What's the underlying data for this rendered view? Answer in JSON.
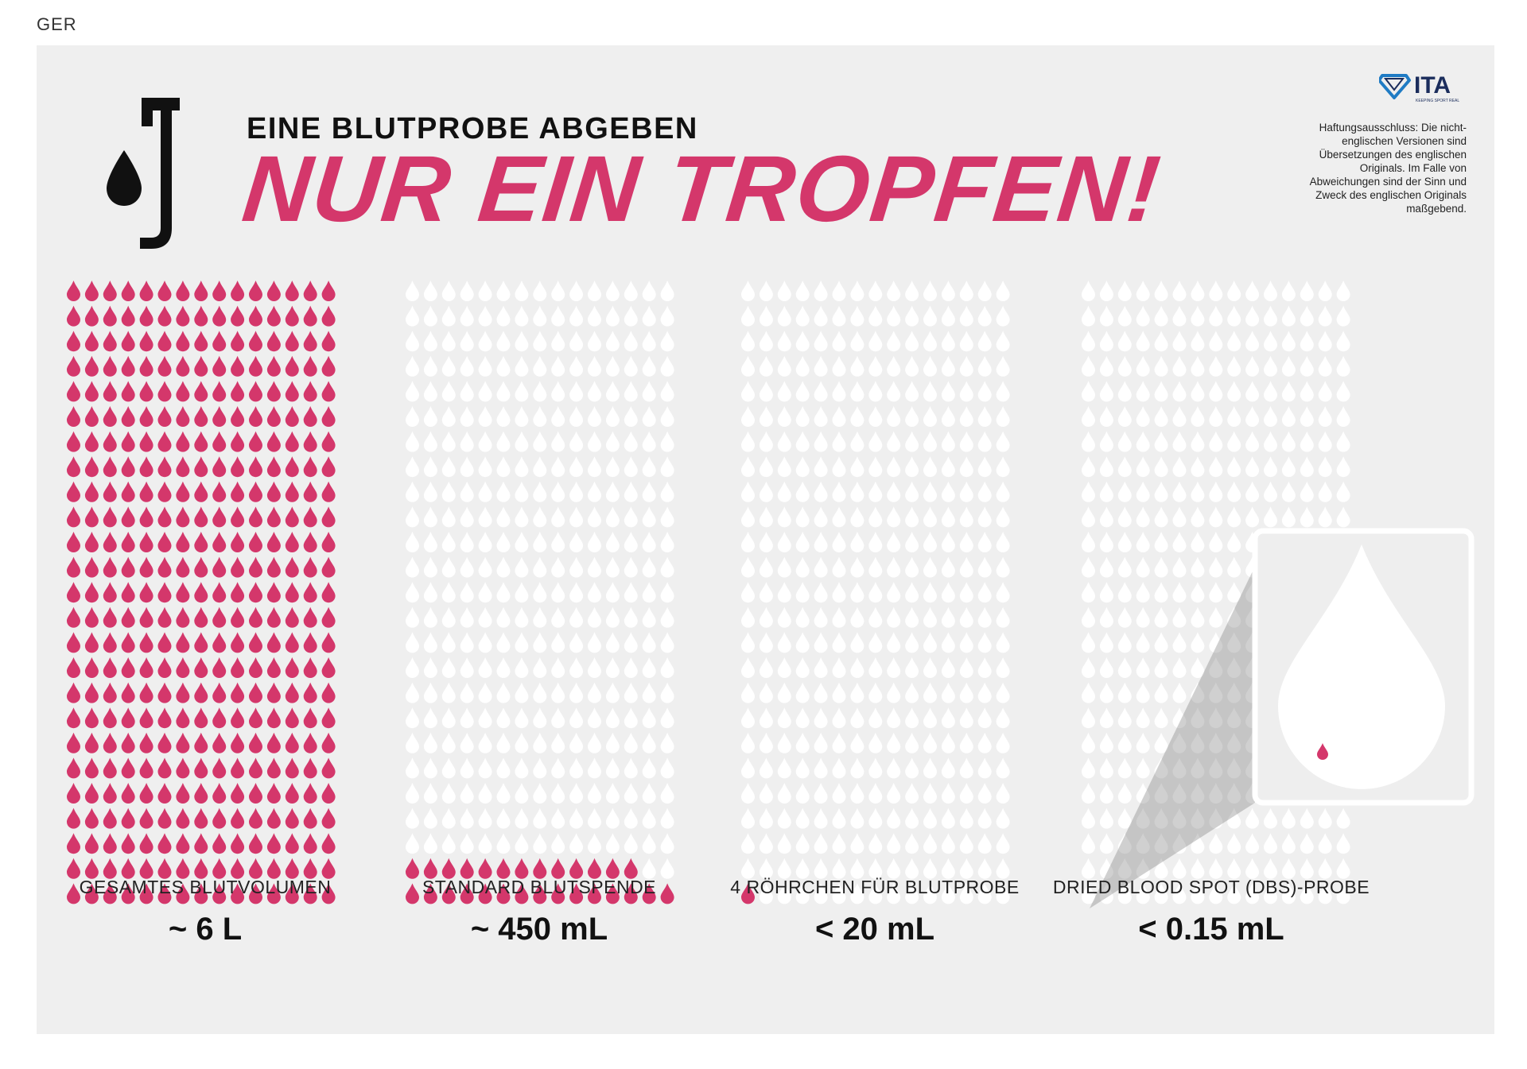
{
  "language_code": "GER",
  "header": {
    "subtitle": "EINE BLUTPROBE ABGEBEN",
    "title": "NUR EIN TROPFEN!"
  },
  "logo": {
    "name": "ITA",
    "tagline": "KEEPING SPORT REAL"
  },
  "disclaimer": "Haftungsausschluss: Die nicht-englischen Versionen sind Übersetzungen des englischen Originals. Im Falle von Abweichungen sind der Sinn und Zweck des englischen Originals maßgebend.",
  "icons": {
    "header": "test-tube-drop-icon",
    "card": "large-drop-icon",
    "unit": "drop-icon"
  },
  "colors": {
    "accent": "#d4376b",
    "empty_drop": "#ffffff",
    "panel": "#efefef",
    "text": "#111111"
  },
  "chart_data": {
    "type": "pictogram",
    "title": "NUR EIN TROPFEN!",
    "grid": {
      "columns": 15,
      "rows": 25
    },
    "categories": [
      "GESAMTES BLUTVOLUMEN",
      "STANDARD BLUTSPENDE",
      "4 RÖHRCHEN FÜR BLUTPROBE",
      "DRIED BLOOD SPOT (DBS)-PROBE"
    ],
    "value_labels": [
      "~ 6 L",
      "~ 450 mL",
      "< 20 mL",
      "< 0.15 mL"
    ],
    "values_ml": [
      6000,
      450,
      20,
      0.15
    ],
    "filled_units": [
      375,
      28,
      1,
      0
    ],
    "total_units": 375,
    "zoom_inset": {
      "column": 3,
      "filled_fraction_of_one_drop": 0.0075
    }
  }
}
